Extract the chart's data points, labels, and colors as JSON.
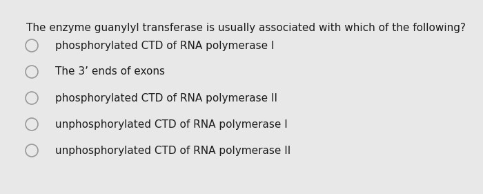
{
  "question": "The enzyme guanylyl transferase is usually associated with which of the following?",
  "options": [
    "phosphorylated CTD of RNA polymerase I",
    "The 3’ ends of exons",
    "phosphorylated CTD of RNA polymerase II",
    "unphosphorylated CTD of RNA polymerase I",
    "unphosphorylated CTD of RNA polymerase II"
  ],
  "background_color": "#e8e8e8",
  "text_color": "#1a1a1a",
  "question_fontsize": 11.0,
  "option_fontsize": 11.0,
  "circle_color": "#999999",
  "circle_linewidth": 1.2
}
